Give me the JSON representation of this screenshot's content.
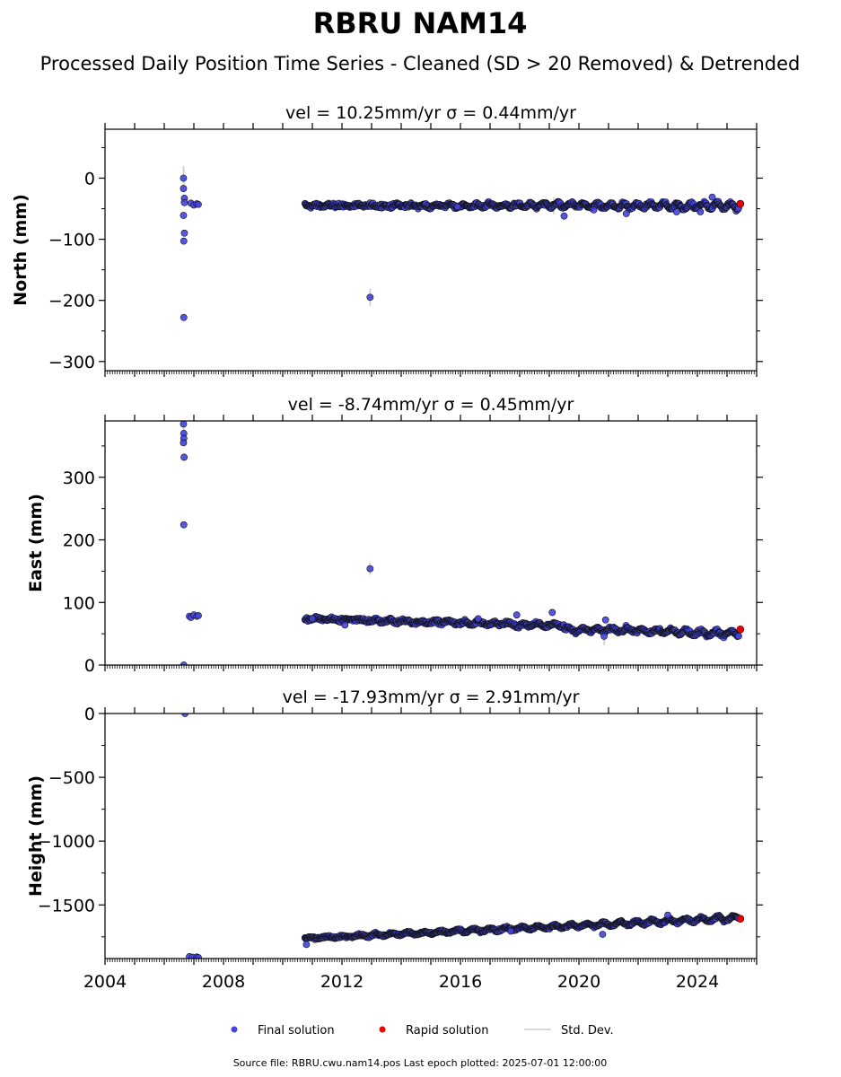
{
  "header": {
    "title": "RBRU NAM14",
    "subtitle": "Processed Daily Position Time Series - Cleaned (SD > 20 Removed) & Detrended"
  },
  "legend": {
    "final": "Final solution",
    "rapid": "Rapid solution",
    "std": "Std. Dev."
  },
  "footer": {
    "source": "Source file: RBRU.cwu.nam14.pos  Last epoch plotted: 2025-07-01 12:00:00"
  },
  "colors": {
    "final": "#4444dd",
    "rapid": "#ee0000",
    "errorbar": "#cccccc",
    "edge": "#111111"
  },
  "chart_data": [
    {
      "type": "scatter",
      "title": "vel = 10.25mm/yr   σ = 0.44mm/yr",
      "ylabel": "North (mm)",
      "xlim": [
        2004.0,
        2026.0
      ],
      "ylim": [
        -315,
        80
      ],
      "yticks": [
        0,
        -100,
        -200,
        -300
      ],
      "ytick_labels": [
        "0",
        "−100",
        "−200",
        "−300"
      ],
      "xticks": [
        2004,
        2008,
        2012,
        2016,
        2020,
        2024
      ],
      "grid": false,
      "trend": {
        "start": 2010.75,
        "end": 2025.4,
        "mean": -45,
        "drift": 0,
        "noise": 3,
        "wave_amp": [
          1,
          5
        ],
        "wave_period": 0.45,
        "step": 0.02
      },
      "points": [
        [
          2006.65,
          0
        ],
        [
          2006.65,
          -17
        ],
        [
          2006.68,
          -33
        ],
        [
          2006.68,
          -40
        ],
        [
          2006.65,
          -61
        ],
        [
          2006.68,
          -90
        ],
        [
          2006.66,
          -103
        ],
        [
          2006.66,
          -228
        ],
        [
          2006.9,
          -41
        ],
        [
          2007.0,
          -44
        ],
        [
          2007.1,
          -42
        ],
        [
          2007.15,
          -43
        ],
        [
          2012.95,
          -195
        ],
        [
          2015.9,
          -47
        ],
        [
          2019.5,
          -62
        ],
        [
          2020.5,
          -52
        ],
        [
          2021.6,
          -58
        ],
        [
          2023.3,
          -55
        ],
        [
          2024.1,
          -55
        ],
        [
          2024.5,
          -31
        ]
      ],
      "errorbars": [
        [
          2006.65,
          20
        ],
        [
          2006.66,
          14
        ],
        [
          2012.95,
          14
        ],
        [
          2019.15,
          14
        ]
      ],
      "rapid": [
        [
          2025.45,
          -42
        ]
      ]
    },
    {
      "type": "scatter",
      "title": "vel = -8.74mm/yr   σ = 0.45mm/yr",
      "ylabel": "East (mm)",
      "xlim": [
        2004.0,
        2026.0
      ],
      "ylim": [
        0,
        390
      ],
      "yticks": [
        0,
        100,
        200,
        300
      ],
      "ytick_labels": [
        "0",
        "100",
        "200",
        "300"
      ],
      "xticks": [
        2004,
        2008,
        2012,
        2016,
        2020,
        2024
      ],
      "grid": false,
      "trend": {
        "start": 2010.75,
        "end": 2025.4,
        "mean": 74,
        "drift": -1.2,
        "noise": 3,
        "wave_amp": [
          1,
          4
        ],
        "wave_period": 0.5,
        "step": 0.02,
        "shift_at": 2019.5,
        "shift_after": -6
      },
      "points": [
        [
          2006.65,
          385
        ],
        [
          2006.66,
          370
        ],
        [
          2006.66,
          362
        ],
        [
          2006.65,
          355
        ],
        [
          2006.67,
          332
        ],
        [
          2006.66,
          224
        ],
        [
          2006.66,
          0
        ],
        [
          2006.85,
          78
        ],
        [
          2006.9,
          76
        ],
        [
          2007.0,
          80
        ],
        [
          2007.1,
          78
        ],
        [
          2007.15,
          79
        ],
        [
          2012.95,
          154
        ],
        [
          2011.0,
          74
        ],
        [
          2016.6,
          74
        ],
        [
          2017.9,
          80
        ],
        [
          2019.1,
          84
        ],
        [
          2020.9,
          72
        ],
        [
          2012.1,
          64
        ],
        [
          2020.85,
          46
        ]
      ],
      "errorbars": [
        [
          2006.66,
          20
        ],
        [
          2006.66,
          14
        ],
        [
          2012.95,
          10
        ],
        [
          2020.85,
          14
        ]
      ],
      "rapid": [
        [
          2025.45,
          57
        ]
      ]
    },
    {
      "type": "scatter",
      "title": "vel = -17.93mm/yr   σ = 2.91mm/yr",
      "ylabel": "Height (mm)",
      "xlim": [
        2004.0,
        2026.0
      ],
      "ylim": [
        -1920,
        0
      ],
      "yticks": [
        0,
        -500,
        -1000,
        -1500
      ],
      "ytick_labels": [
        "0",
        "−500",
        "−1000",
        "−1500"
      ],
      "xticks": [
        2004,
        2008,
        2012,
        2016,
        2020,
        2024
      ],
      "xtick_labels": [
        "2004",
        "2008",
        "2012",
        "2016",
        "2020",
        "2024"
      ],
      "grid": false,
      "trend": {
        "start": 2010.75,
        "end": 2025.4,
        "mean": -1762,
        "drift": 10.9,
        "noise": 10,
        "wave_amp": [
          6,
          18
        ],
        "wave_period": 0.55,
        "step": 0.02
      },
      "points": [
        [
          2006.7,
          0
        ],
        [
          2006.85,
          -1905
        ],
        [
          2006.95,
          -1910
        ],
        [
          2007.1,
          -1908
        ],
        [
          2007.15,
          -1912
        ],
        [
          2010.8,
          -1810
        ],
        [
          2020.8,
          -1730
        ],
        [
          2023.0,
          -1580
        ],
        [
          2017.7,
          -1705
        ]
      ],
      "errorbars": [],
      "rapid": [
        [
          2025.45,
          -1608
        ]
      ]
    }
  ]
}
